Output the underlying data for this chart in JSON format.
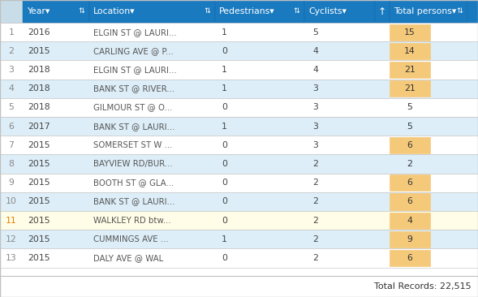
{
  "header_cols": [
    "",
    "Year▾",
    "",
    "Location▾",
    "",
    "Pedestrians▾",
    "",
    "Cyclists▾",
    "↑",
    "Total persons▾",
    ""
  ],
  "header_display": [
    {
      "text": "",
      "sort": ""
    },
    {
      "text": "Year",
      "sort": "▾"
    },
    {
      "text": "",
      "sort": "⇅"
    },
    {
      "text": "Location",
      "sort": "▾"
    },
    {
      "text": "",
      "sort": "⇅"
    },
    {
      "text": "Pedestrians",
      "sort": "▾"
    },
    {
      "text": "",
      "sort": "⇅"
    },
    {
      "text": "Cyclists",
      "sort": "▾"
    },
    {
      "text": "↑",
      "sort": ""
    },
    {
      "text": "Total persons",
      "sort": "▾"
    },
    {
      "text": "",
      "sort": "⇅"
    }
  ],
  "rows": [
    [
      "1",
      "2016",
      "ELGIN ST @ LAURI...",
      "1",
      "5",
      "15"
    ],
    [
      "2",
      "2015",
      "CARLING AVE @ P...",
      "0",
      "4",
      "14"
    ],
    [
      "3",
      "2018",
      "ELGIN ST @ LAURI...",
      "1",
      "4",
      "21"
    ],
    [
      "4",
      "2018",
      "BANK ST @ RIVER...",
      "1",
      "3",
      "21"
    ],
    [
      "5",
      "2018",
      "GILMOUR ST @ O...",
      "0",
      "3",
      "5"
    ],
    [
      "6",
      "2017",
      "BANK ST @ LAURI...",
      "1",
      "3",
      "5"
    ],
    [
      "7",
      "2015",
      "SOMERSET ST W ...",
      "0",
      "3",
      "6"
    ],
    [
      "8",
      "2015",
      "BAYVIEW RD/BUR...",
      "0",
      "2",
      "2"
    ],
    [
      "9",
      "2015",
      "BOOTH ST @ GLA...",
      "0",
      "2",
      "6"
    ],
    [
      "10",
      "2015",
      "BANK ST @ LAURI...",
      "0",
      "2",
      "6"
    ],
    [
      "11",
      "2015",
      "WALKLEY RD btw...",
      "0",
      "2",
      "4"
    ],
    [
      "12",
      "2015",
      "CUMMINGS AVE ...",
      "1",
      "2",
      "9"
    ],
    [
      "13",
      "2015",
      "DALY AVE @ WAL",
      "0",
      "2",
      "6"
    ]
  ],
  "highlighted_total": [
    true,
    true,
    true,
    true,
    false,
    false,
    true,
    false,
    true,
    true,
    true,
    true,
    true
  ],
  "row11_highlighted": true,
  "header_bg": "#1a7abf",
  "header_text": "#ffffff",
  "row_bg_white": "#ffffff",
  "row_bg_blue": "#ddeef8",
  "row11_bg": "#fffde7",
  "highlight_cell_bg": "#f5c97a",
  "border_color": "#c0c0c0",
  "footer_bg": "#ffffff",
  "row11_num_color": "#e67e00",
  "total_records_text": "Total Records: 22,515",
  "fig_width": 5.89,
  "fig_height": 3.66,
  "dpi": 100
}
